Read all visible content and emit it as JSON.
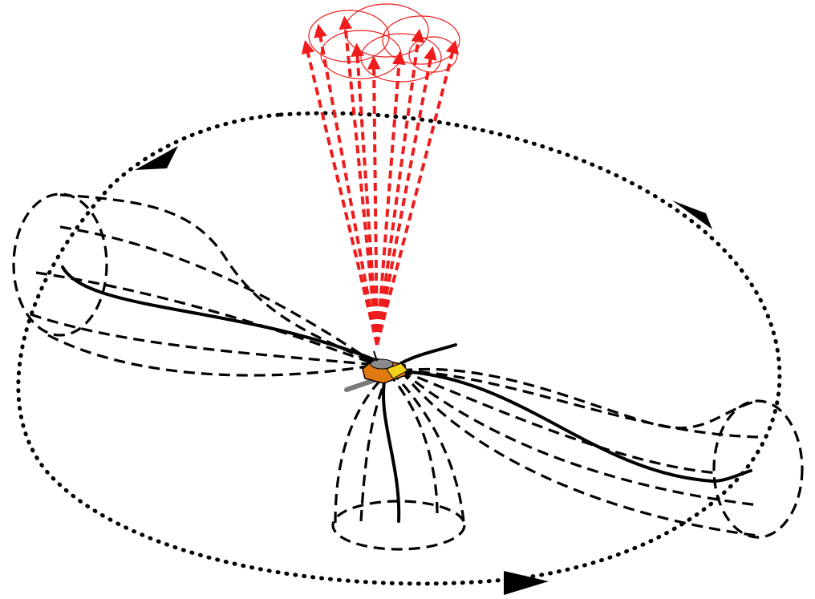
{
  "diagram": {
    "colors": {
      "background": "#ffffff",
      "field_lines": "#000000",
      "beams": "#ee1c1c",
      "spacecraft_body": "#e07a10",
      "spacecraft_panel": "#f2d21a",
      "spacecraft_antenna": "#7a7a7a"
    },
    "elements": [
      "spin-orbit-path",
      "orbit-direction-arrow",
      "wire-boom",
      "field-line-bundle",
      "radar-beam-cone",
      "beam-footprint-circle",
      "spacecraft-icon"
    ]
  }
}
